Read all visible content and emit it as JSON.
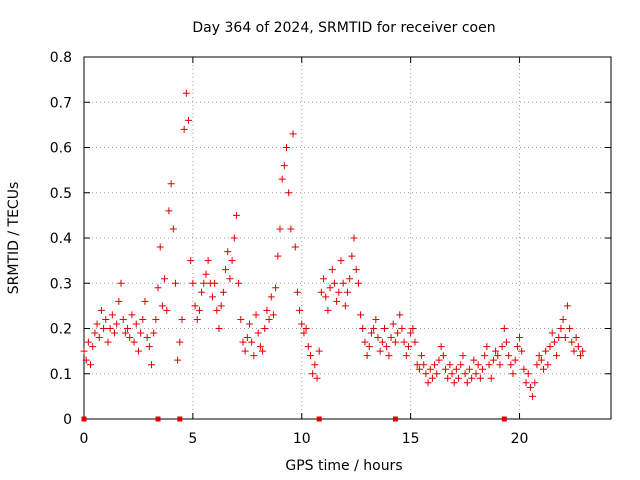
{
  "chart_data": {
    "type": "scatter",
    "title": "Day 364 of 2024, SRMTID for receiver coen",
    "xlabel": "GPS time / hours",
    "ylabel": "SRMTID / TECUs",
    "xlim": [
      0,
      24.2
    ],
    "ylim": [
      0,
      0.8
    ],
    "x_ticks": [
      0,
      5,
      10,
      15,
      20
    ],
    "y_ticks": [
      0,
      0.1,
      0.2,
      0.3,
      0.4,
      0.5,
      0.6,
      0.7,
      0.8
    ],
    "x_tick_labels": [
      "0",
      "5",
      "10",
      "15",
      "20"
    ],
    "y_tick_labels": [
      "0",
      "0.1",
      "0.2",
      "0.3",
      "0.4",
      "0.5",
      "0.6",
      "0.7",
      "0.8"
    ],
    "grid": true,
    "marker": "+",
    "color": "#e00000",
    "zero_markers_x": [
      0.0,
      3.4,
      4.4,
      10.8,
      14.3,
      19.3
    ],
    "series": [
      {
        "name": "SRMTID",
        "points": [
          [
            0.0,
            0.15
          ],
          [
            0.1,
            0.13
          ],
          [
            0.2,
            0.17
          ],
          [
            0.3,
            0.12
          ],
          [
            0.4,
            0.16
          ],
          [
            0.5,
            0.19
          ],
          [
            0.6,
            0.21
          ],
          [
            0.7,
            0.18
          ],
          [
            0.8,
            0.24
          ],
          [
            0.9,
            0.2
          ],
          [
            1.0,
            0.22
          ],
          [
            1.1,
            0.17
          ],
          [
            1.2,
            0.2
          ],
          [
            1.3,
            0.23
          ],
          [
            1.4,
            0.19
          ],
          [
            1.5,
            0.21
          ],
          [
            1.6,
            0.26
          ],
          [
            1.7,
            0.3
          ],
          [
            1.8,
            0.22
          ],
          [
            1.9,
            0.19
          ],
          [
            2.0,
            0.2
          ],
          [
            2.1,
            0.18
          ],
          [
            2.2,
            0.23
          ],
          [
            2.3,
            0.17
          ],
          [
            2.4,
            0.21
          ],
          [
            2.5,
            0.15
          ],
          [
            2.6,
            0.19
          ],
          [
            2.7,
            0.22
          ],
          [
            2.8,
            0.26
          ],
          [
            2.9,
            0.18
          ],
          [
            3.0,
            0.16
          ],
          [
            3.1,
            0.12
          ],
          [
            3.2,
            0.19
          ],
          [
            3.3,
            0.22
          ],
          [
            3.4,
            0.29
          ],
          [
            3.5,
            0.38
          ],
          [
            3.6,
            0.25
          ],
          [
            3.7,
            0.31
          ],
          [
            3.8,
            0.24
          ],
          [
            3.9,
            0.46
          ],
          [
            4.0,
            0.52
          ],
          [
            4.1,
            0.42
          ],
          [
            4.2,
            0.3
          ],
          [
            4.3,
            0.13
          ],
          [
            4.4,
            0.17
          ],
          [
            4.5,
            0.22
          ],
          [
            4.6,
            0.64
          ],
          [
            4.7,
            0.72
          ],
          [
            4.8,
            0.66
          ],
          [
            4.9,
            0.35
          ],
          [
            5.0,
            0.3
          ],
          [
            5.1,
            0.25
          ],
          [
            5.2,
            0.22
          ],
          [
            5.3,
            0.24
          ],
          [
            5.4,
            0.28
          ],
          [
            5.5,
            0.3
          ],
          [
            5.6,
            0.32
          ],
          [
            5.7,
            0.35
          ],
          [
            5.8,
            0.3
          ],
          [
            5.9,
            0.27
          ],
          [
            6.0,
            0.3
          ],
          [
            6.1,
            0.24
          ],
          [
            6.2,
            0.2
          ],
          [
            6.3,
            0.25
          ],
          [
            6.4,
            0.28
          ],
          [
            6.5,
            0.33
          ],
          [
            6.6,
            0.37
          ],
          [
            6.7,
            0.31
          ],
          [
            6.8,
            0.35
          ],
          [
            6.9,
            0.4
          ],
          [
            7.0,
            0.45
          ],
          [
            7.1,
            0.3
          ],
          [
            7.2,
            0.22
          ],
          [
            7.3,
            0.17
          ],
          [
            7.4,
            0.15
          ],
          [
            7.5,
            0.18
          ],
          [
            7.6,
            0.21
          ],
          [
            7.7,
            0.17
          ],
          [
            7.8,
            0.14
          ],
          [
            7.9,
            0.23
          ],
          [
            8.0,
            0.19
          ],
          [
            8.1,
            0.16
          ],
          [
            8.2,
            0.15
          ],
          [
            8.3,
            0.2
          ],
          [
            8.4,
            0.24
          ],
          [
            8.5,
            0.22
          ],
          [
            8.6,
            0.27
          ],
          [
            8.7,
            0.23
          ],
          [
            8.8,
            0.29
          ],
          [
            8.9,
            0.36
          ],
          [
            9.0,
            0.42
          ],
          [
            9.1,
            0.53
          ],
          [
            9.2,
            0.56
          ],
          [
            9.3,
            0.6
          ],
          [
            9.4,
            0.5
          ],
          [
            9.5,
            0.42
          ],
          [
            9.6,
            0.63
          ],
          [
            9.7,
            0.38
          ],
          [
            9.8,
            0.28
          ],
          [
            9.9,
            0.24
          ],
          [
            10.0,
            0.21
          ],
          [
            10.1,
            0.19
          ],
          [
            10.2,
            0.2
          ],
          [
            10.3,
            0.16
          ],
          [
            10.4,
            0.14
          ],
          [
            10.5,
            0.1
          ],
          [
            10.6,
            0.12
          ],
          [
            10.7,
            0.09
          ],
          [
            10.8,
            0.15
          ],
          [
            10.9,
            0.28
          ],
          [
            11.0,
            0.31
          ],
          [
            11.1,
            0.27
          ],
          [
            11.2,
            0.24
          ],
          [
            11.3,
            0.29
          ],
          [
            11.4,
            0.33
          ],
          [
            11.5,
            0.3
          ],
          [
            11.6,
            0.26
          ],
          [
            11.7,
            0.28
          ],
          [
            11.8,
            0.35
          ],
          [
            11.9,
            0.3
          ],
          [
            12.0,
            0.25
          ],
          [
            12.1,
            0.28
          ],
          [
            12.2,
            0.31
          ],
          [
            12.3,
            0.36
          ],
          [
            12.4,
            0.4
          ],
          [
            12.5,
            0.33
          ],
          [
            12.6,
            0.3
          ],
          [
            12.7,
            0.23
          ],
          [
            12.8,
            0.2
          ],
          [
            12.9,
            0.17
          ],
          [
            13.0,
            0.14
          ],
          [
            13.1,
            0.16
          ],
          [
            13.2,
            0.19
          ],
          [
            13.3,
            0.2
          ],
          [
            13.4,
            0.22
          ],
          [
            13.5,
            0.18
          ],
          [
            13.6,
            0.15
          ],
          [
            13.7,
            0.17
          ],
          [
            13.8,
            0.2
          ],
          [
            13.9,
            0.16
          ],
          [
            14.0,
            0.14
          ],
          [
            14.1,
            0.18
          ],
          [
            14.2,
            0.21
          ],
          [
            14.3,
            0.17
          ],
          [
            14.4,
            0.19
          ],
          [
            14.5,
            0.23
          ],
          [
            14.6,
            0.2
          ],
          [
            14.7,
            0.17
          ],
          [
            14.8,
            0.14
          ],
          [
            14.9,
            0.16
          ],
          [
            15.0,
            0.19
          ],
          [
            15.1,
            0.2
          ],
          [
            15.2,
            0.17
          ],
          [
            15.3,
            0.12
          ],
          [
            15.4,
            0.11
          ],
          [
            15.5,
            0.14
          ],
          [
            15.6,
            0.12
          ],
          [
            15.7,
            0.1
          ],
          [
            15.8,
            0.08
          ],
          [
            15.9,
            0.11
          ],
          [
            16.0,
            0.09
          ],
          [
            16.1,
            0.12
          ],
          [
            16.2,
            0.1
          ],
          [
            16.3,
            0.13
          ],
          [
            16.4,
            0.16
          ],
          [
            16.5,
            0.14
          ],
          [
            16.6,
            0.11
          ],
          [
            16.7,
            0.09
          ],
          [
            16.8,
            0.12
          ],
          [
            16.9,
            0.1
          ],
          [
            17.0,
            0.08
          ],
          [
            17.1,
            0.11
          ],
          [
            17.2,
            0.09
          ],
          [
            17.3,
            0.12
          ],
          [
            17.4,
            0.14
          ],
          [
            17.5,
            0.1
          ],
          [
            17.6,
            0.08
          ],
          [
            17.7,
            0.11
          ],
          [
            17.8,
            0.09
          ],
          [
            17.9,
            0.13
          ],
          [
            18.0,
            0.1
          ],
          [
            18.1,
            0.12
          ],
          [
            18.2,
            0.09
          ],
          [
            18.3,
            0.11
          ],
          [
            18.4,
            0.14
          ],
          [
            18.5,
            0.16
          ],
          [
            18.6,
            0.12
          ],
          [
            18.7,
            0.09
          ],
          [
            18.8,
            0.13
          ],
          [
            18.9,
            0.15
          ],
          [
            19.0,
            0.14
          ],
          [
            19.1,
            0.12
          ],
          [
            19.2,
            0.16
          ],
          [
            19.3,
            0.2
          ],
          [
            19.4,
            0.17
          ],
          [
            19.5,
            0.14
          ],
          [
            19.6,
            0.12
          ],
          [
            19.7,
            0.1
          ],
          [
            19.8,
            0.13
          ],
          [
            19.9,
            0.16
          ],
          [
            20.0,
            0.18
          ],
          [
            20.1,
            0.15
          ],
          [
            20.2,
            0.11
          ],
          [
            20.3,
            0.08
          ],
          [
            20.4,
            0.1
          ],
          [
            20.5,
            0.07
          ],
          [
            20.6,
            0.05
          ],
          [
            20.7,
            0.08
          ],
          [
            20.8,
            0.12
          ],
          [
            20.9,
            0.14
          ],
          [
            21.0,
            0.13
          ],
          [
            21.1,
            0.11
          ],
          [
            21.2,
            0.15
          ],
          [
            21.3,
            0.12
          ],
          [
            21.4,
            0.16
          ],
          [
            21.5,
            0.19
          ],
          [
            21.6,
            0.17
          ],
          [
            21.7,
            0.14
          ],
          [
            21.8,
            0.18
          ],
          [
            21.9,
            0.2
          ],
          [
            22.0,
            0.22
          ],
          [
            22.1,
            0.18
          ],
          [
            22.2,
            0.25
          ],
          [
            22.3,
            0.2
          ],
          [
            22.4,
            0.17
          ],
          [
            22.5,
            0.15
          ],
          [
            22.6,
            0.18
          ],
          [
            22.7,
            0.16
          ],
          [
            22.8,
            0.14
          ],
          [
            22.9,
            0.15
          ]
        ]
      }
    ]
  }
}
